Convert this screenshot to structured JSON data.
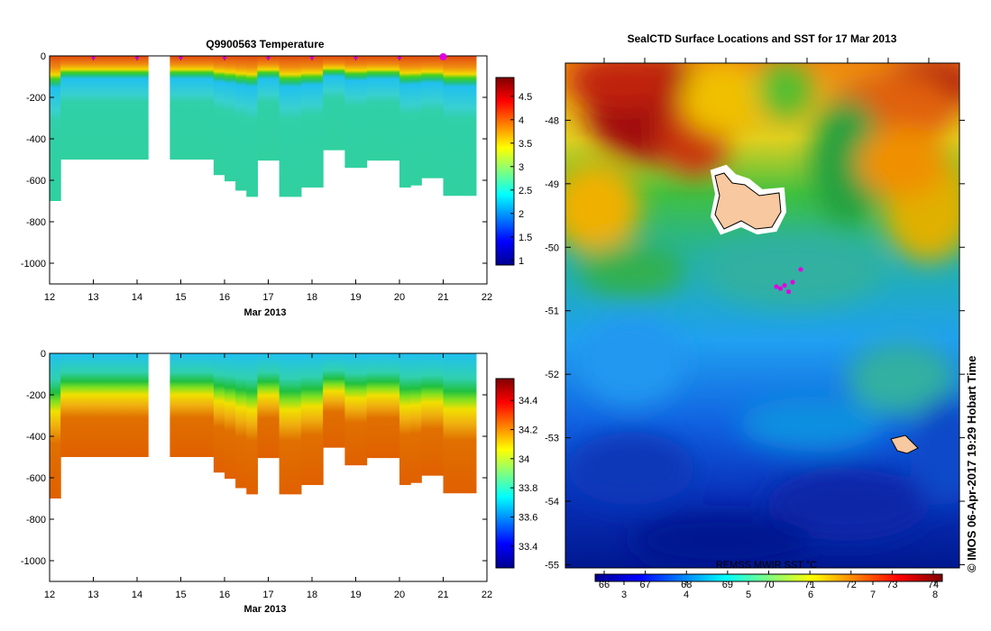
{
  "chart_data": [
    {
      "type": "heatmap",
      "title": "Q9900563  Temperature",
      "xlabel": "Mar 2013",
      "x_ticks": [
        "12",
        "13",
        "14",
        "15",
        "16",
        "17",
        "18",
        "19",
        "20",
        "21",
        "22"
      ],
      "y_ticks": [
        "0",
        "-200",
        "-400",
        "-600",
        "-800",
        "-1000"
      ],
      "xlim": [
        12,
        22
      ],
      "ylim": [
        -1100,
        0
      ],
      "colorbar_ticks": [
        "1",
        "1.5",
        "2",
        "2.5",
        "3",
        "3.5",
        "4",
        "4.5"
      ],
      "colorbar_range": [
        0.9,
        4.9
      ],
      "profiles": [
        {
          "day": 12.0,
          "depth": 700
        },
        {
          "day": 12.25,
          "depth": 500
        },
        {
          "day": 12.5,
          "depth": 500
        },
        {
          "day": 12.75,
          "depth": 500
        },
        {
          "day": 13.0,
          "depth": 500
        },
        {
          "day": 13.25,
          "depth": 500
        },
        {
          "day": 13.5,
          "depth": 500
        },
        {
          "day": 13.75,
          "depth": 500
        },
        {
          "day": 14.0,
          "depth": 500
        },
        {
          "day": 14.75,
          "depth": 500
        },
        {
          "day": 15.0,
          "depth": 500
        },
        {
          "day": 15.25,
          "depth": 500
        },
        {
          "day": 15.5,
          "depth": 500
        },
        {
          "day": 15.75,
          "depth": 575
        },
        {
          "day": 16.0,
          "depth": 605
        },
        {
          "day": 16.25,
          "depth": 650
        },
        {
          "day": 16.5,
          "depth": 680
        },
        {
          "day": 16.75,
          "depth": 505
        },
        {
          "day": 17.0,
          "depth": 505
        },
        {
          "day": 17.25,
          "depth": 680
        },
        {
          "day": 17.5,
          "depth": 680
        },
        {
          "day": 17.75,
          "depth": 635
        },
        {
          "day": 18.0,
          "depth": 635
        },
        {
          "day": 18.25,
          "depth": 455
        },
        {
          "day": 18.5,
          "depth": 455
        },
        {
          "day": 18.75,
          "depth": 540
        },
        {
          "day": 19.0,
          "depth": 540
        },
        {
          "day": 19.25,
          "depth": 505
        },
        {
          "day": 19.5,
          "depth": 505
        },
        {
          "day": 19.75,
          "depth": 505
        },
        {
          "day": 20.0,
          "depth": 635
        },
        {
          "day": 20.25,
          "depth": 625
        },
        {
          "day": 20.5,
          "depth": 590
        },
        {
          "day": 20.75,
          "depth": 590
        },
        {
          "day": 21.0,
          "depth": 675
        },
        {
          "day": 21.25,
          "depth": 675
        },
        {
          "day": 21.5,
          "depth": 675
        }
      ]
    },
    {
      "type": "heatmap",
      "title": "",
      "xlabel": "Mar 2013",
      "x_ticks": [
        "12",
        "13",
        "14",
        "15",
        "16",
        "17",
        "18",
        "19",
        "20",
        "21",
        "22"
      ],
      "y_ticks": [
        "0",
        "-200",
        "-400",
        "-600",
        "-800",
        "-1000"
      ],
      "xlim": [
        12,
        22
      ],
      "ylim": [
        -1100,
        0
      ],
      "colorbar_ticks": [
        "33.4",
        "33.6",
        "33.8",
        "34",
        "34.2",
        "34.4"
      ],
      "colorbar_range": [
        33.25,
        34.55
      ]
    },
    {
      "type": "heatmap",
      "title": "SealCTD Surface Locations and SST for 17 Mar 2013",
      "lat_ticks": [
        "-48",
        "-49",
        "-50",
        "-51",
        "-52",
        "-53",
        "-54",
        "-55"
      ],
      "lat_range": [
        -55.05,
        -47.1
      ],
      "colorbar_label": "REMSS MWIR SST °C",
      "colorbar_top_ticks": [
        "66",
        "67",
        "68",
        "69",
        "70",
        "71",
        "72",
        "73",
        "74"
      ],
      "colorbar_bottom_ticks": [
        "3",
        "4",
        "5",
        "6",
        "7",
        "8"
      ],
      "seal_locations": [
        {
          "lon": 1.0,
          "lat": -50.35
        },
        {
          "lon": 0.9,
          "lat": -50.55
        },
        {
          "lon": 0.8,
          "lat": -50.6
        },
        {
          "lon": 0.75,
          "lat": -50.65
        },
        {
          "lon": 0.85,
          "lat": -50.7
        },
        {
          "lon": 0.7,
          "lat": -50.62
        }
      ]
    }
  ],
  "footer": {
    "credit": "© IMOS 06-Apr-2017 19:29 Hobart Time"
  }
}
